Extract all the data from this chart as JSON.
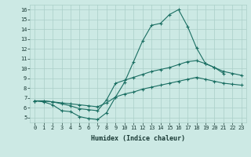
{
  "xlabel": "Humidex (Indice chaleur)",
  "xlim": [
    -0.5,
    23.5
  ],
  "ylim": [
    4.5,
    16.5
  ],
  "yticks": [
    5,
    6,
    7,
    8,
    9,
    10,
    11,
    12,
    13,
    14,
    15,
    16
  ],
  "xticks": [
    0,
    1,
    2,
    3,
    4,
    5,
    6,
    7,
    8,
    9,
    10,
    11,
    12,
    13,
    14,
    15,
    16,
    17,
    18,
    19,
    20,
    21,
    22,
    23
  ],
  "background_color": "#cce9e4",
  "line_color": "#1a6e62",
  "grid_color": "#aacfc8",
  "line1_x": [
    0,
    1,
    2,
    3,
    4,
    5,
    6,
    7,
    8,
    9,
    10,
    11,
    12,
    13,
    14,
    15,
    16,
    17,
    18,
    19,
    20,
    21
  ],
  "line1_y": [
    6.7,
    6.6,
    6.3,
    5.7,
    5.6,
    5.1,
    4.9,
    4.8,
    5.5,
    7.1,
    8.6,
    10.7,
    12.8,
    14.4,
    14.6,
    15.5,
    16.0,
    14.3,
    12.1,
    10.5,
    10.1,
    9.5
  ],
  "line2_x": [
    0,
    1,
    2,
    3,
    4,
    5,
    6,
    7,
    8,
    9,
    10,
    11,
    12,
    13,
    14,
    15,
    16,
    17,
    18,
    19,
    20,
    21,
    22,
    23
  ],
  "line2_y": [
    6.7,
    6.7,
    6.6,
    6.4,
    6.2,
    5.9,
    5.8,
    5.7,
    6.8,
    8.5,
    8.8,
    9.1,
    9.4,
    9.7,
    9.9,
    10.1,
    10.4,
    10.7,
    10.8,
    10.5,
    10.1,
    9.7,
    9.5,
    9.3
  ],
  "line3_x": [
    0,
    1,
    2,
    3,
    4,
    5,
    6,
    7,
    8,
    9,
    10,
    11,
    12,
    13,
    14,
    15,
    16,
    17,
    18,
    19,
    20,
    21,
    22,
    23
  ],
  "line3_y": [
    6.7,
    6.7,
    6.6,
    6.5,
    6.4,
    6.3,
    6.2,
    6.1,
    6.5,
    7.1,
    7.4,
    7.6,
    7.9,
    8.1,
    8.3,
    8.5,
    8.7,
    8.9,
    9.1,
    8.9,
    8.7,
    8.5,
    8.4,
    8.3
  ]
}
